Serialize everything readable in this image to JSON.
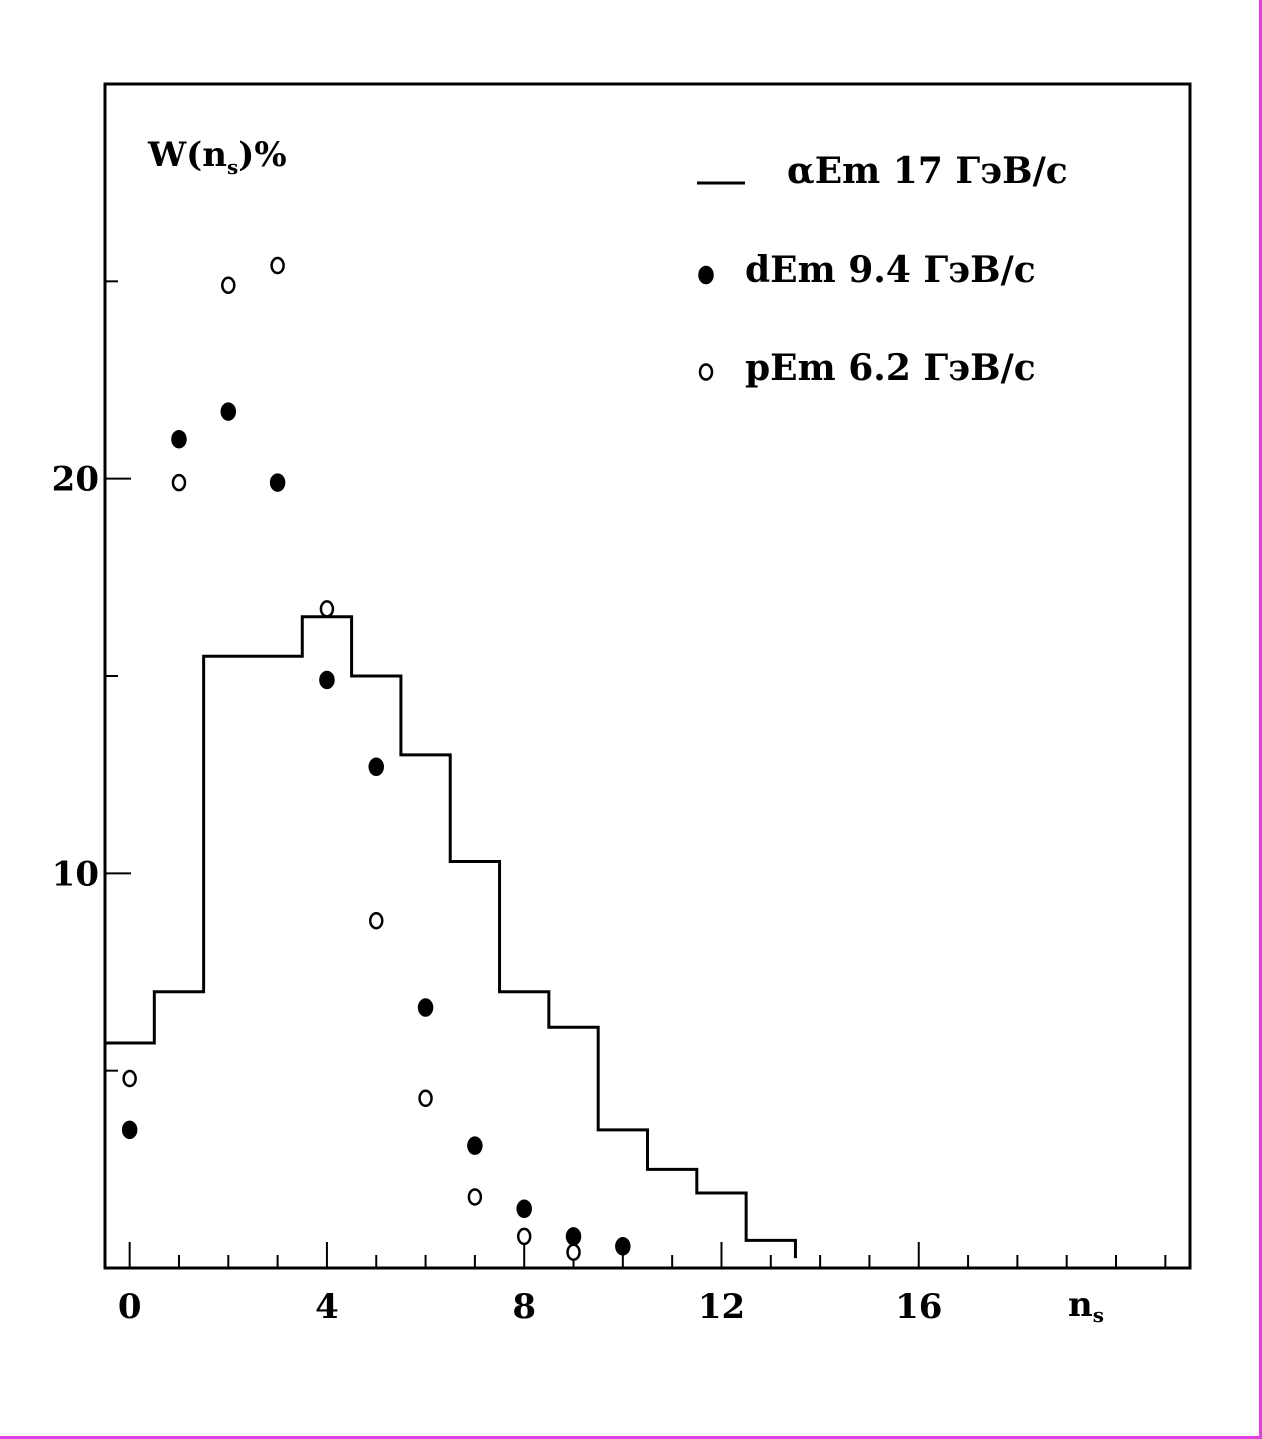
{
  "chart_data": {
    "type": "scatter",
    "ylabel": {
      "main": "W(n",
      "sub": "s",
      "tail": ")%"
    },
    "xlabel": {
      "main": "n",
      "sub": "s"
    },
    "xlim": [
      -0.5,
      21.5
    ],
    "ylim": [
      0,
      30
    ],
    "x_ticks": [
      0,
      4,
      8,
      12,
      16
    ],
    "x_tick_labels": [
      "0",
      "4",
      "8",
      "12",
      "16"
    ],
    "y_ticks": [
      10,
      20
    ],
    "y_tick_labels": [
      "10",
      "20"
    ],
    "x_minor_ticks": [
      1,
      2,
      3,
      5,
      6,
      7,
      9,
      10,
      11,
      13,
      14,
      15,
      17,
      18,
      19,
      20,
      21
    ],
    "y_minor_ticks": [
      5,
      15,
      25
    ],
    "grid": false,
    "legend_position": "top-right",
    "series": [
      {
        "name": "αEm 17 ГэВ/с",
        "kind": "step",
        "edges": [
          -0.5,
          0.5,
          1.5,
          2.5,
          3.5,
          4.5,
          5.5,
          6.5,
          7.5,
          8.5,
          9.5,
          10.5,
          11.5,
          12.5,
          13.5
        ],
        "values": [
          5.7,
          7.0,
          15.5,
          15.5,
          16.5,
          15.0,
          13.0,
          10.3,
          7.0,
          6.1,
          3.5,
          2.5,
          1.9,
          0.7,
          0.25
        ]
      },
      {
        "name": "dEm 9.4 ГэВ/с",
        "kind": "filled",
        "x": [
          0,
          1,
          2,
          3,
          4,
          5,
          6,
          7,
          8,
          9,
          10
        ],
        "y": [
          3.5,
          21.0,
          21.7,
          19.9,
          14.9,
          12.7,
          6.6,
          3.1,
          1.5,
          0.8,
          0.55
        ]
      },
      {
        "name": "pEm 6.2 ГэВ/с",
        "kind": "open",
        "x": [
          0,
          1,
          2,
          3,
          4,
          5,
          6,
          7,
          8,
          9
        ],
        "y": [
          4.8,
          19.9,
          24.9,
          25.4,
          16.7,
          8.8,
          4.3,
          1.8,
          0.8,
          0.4
        ]
      }
    ]
  }
}
